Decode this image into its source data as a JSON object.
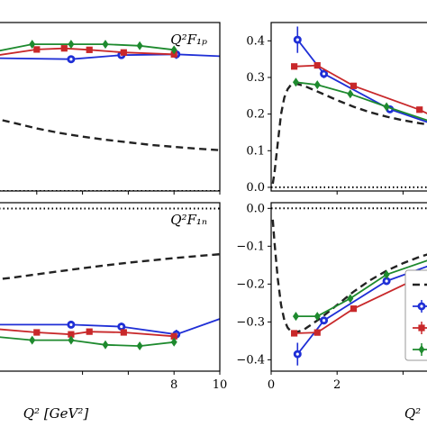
{
  "chart_data": {
    "type": "line",
    "colors": {
      "blue": "#1f2fd6",
      "red": "#c8282a",
      "green": "#1e8a2e",
      "theory": "#222222",
      "zero": "#000000"
    },
    "panels": [
      {
        "id": "tl",
        "label": "Q²F₁ₚ",
        "xlim": [
          0,
          10
        ],
        "ylim": [
          0.0,
          0.45
        ],
        "xticks": [],
        "yticks": [],
        "xticks_marks": [
          2,
          4,
          6,
          8,
          10
        ],
        "theory_curve": {
          "x": [
            0,
            0.5,
            1,
            2,
            3,
            4,
            5,
            6,
            7,
            8,
            9,
            10
          ],
          "y": [
            0.195,
            0.189,
            0.182,
            0.167,
            0.155,
            0.145,
            0.137,
            0.13,
            0.123,
            0.118,
            0.113,
            0.109
          ]
        },
        "zero_line": 0.0,
        "series": [
          {
            "color": "blue",
            "marker": "circle",
            "x": [
              0,
              3.5,
              5.7,
              8.1,
              10
            ],
            "y": [
              0.355,
              0.352,
              0.363,
              0.365,
              0.36
            ],
            "yerr": [
              0,
              0.006,
              0.008,
              0.012,
              0
            ]
          },
          {
            "color": "red",
            "marker": "square",
            "x": [
              0,
              2.0,
              3.2,
              4.3,
              5.8,
              8.0
            ],
            "y": [
              0.36,
              0.378,
              0.381,
              0.377,
              0.37,
              0.365
            ],
            "yerr": [
              0,
              0.004,
              0.004,
              0.005,
              0.005,
              0.006
            ]
          },
          {
            "color": "green",
            "marker": "diamond",
            "x": [
              0,
              1.8,
              3.5,
              5.0,
              6.5,
              8.0
            ],
            "y": [
              0.37,
              0.392,
              0.392,
              0.392,
              0.388,
              0.377
            ],
            "yerr": [
              0,
              0.004,
              0.005,
              0.005,
              0.006,
              0.006
            ]
          }
        ]
      },
      {
        "id": "tr",
        "label": "",
        "xlim": [
          0,
          5
        ],
        "ylim": [
          -0.01,
          0.45
        ],
        "xticks": [],
        "yticks": [
          "0.0",
          "0.1",
          "0.2",
          "0.3",
          "0.4"
        ],
        "yticks_values": [
          0.0,
          0.1,
          0.2,
          0.3,
          0.4
        ],
        "xticks_marks": [
          2,
          4
        ],
        "theory_curve": {
          "x": [
            0.05,
            0.1,
            0.2,
            0.3,
            0.4,
            0.5,
            0.6,
            0.75,
            1.0,
            1.5,
            2.0,
            2.5,
            3.0,
            3.5,
            4.0,
            4.5,
            5.0
          ],
          "y": [
            0.01,
            0.04,
            0.12,
            0.2,
            0.245,
            0.268,
            0.28,
            0.283,
            0.277,
            0.258,
            0.238,
            0.22,
            0.205,
            0.193,
            0.183,
            0.175,
            0.168
          ]
        },
        "zero_line": 0.0,
        "series": [
          {
            "color": "blue",
            "marker": "circle",
            "x": [
              0.8,
              1.6,
              3.6,
              5.0
            ],
            "y": [
              0.403,
              0.31,
              0.213,
              0.17
            ],
            "yerr": [
              0.036,
              0.012,
              0.008,
              0
            ]
          },
          {
            "color": "red",
            "marker": "square",
            "x": [
              0.7,
              1.4,
              2.5,
              4.5,
              5.0
            ],
            "y": [
              0.33,
              0.333,
              0.277,
              0.212,
              0.19
            ],
            "yerr": [
              0.008,
              0.006,
              0.006,
              0.005,
              0
            ]
          },
          {
            "color": "green",
            "marker": "diamond",
            "x": [
              0.75,
              1.4,
              2.4,
              3.5,
              5.0
            ],
            "y": [
              0.287,
              0.28,
              0.255,
              0.22,
              0.175
            ],
            "yerr": [
              0.01,
              0.008,
              0.007,
              0.007,
              0
            ]
          }
        ]
      },
      {
        "id": "bl",
        "label": "Q²F₁ₙ",
        "xlim": [
          0,
          10
        ],
        "ylim": [
          -0.42,
          0.015
        ],
        "xticks": [
          "8",
          "10"
        ],
        "xticks_values": [
          8,
          10
        ],
        "xticks_marks": [
          4,
          6,
          8,
          10
        ],
        "yticks": [],
        "xlabel": "Q² [GeV²]",
        "theory_curve": {
          "x": [
            0,
            1,
            2,
            3,
            4,
            5,
            6,
            7,
            8,
            9,
            10
          ],
          "y": [
            -0.185,
            -0.178,
            -0.17,
            -0.162,
            -0.154,
            -0.147,
            -0.14,
            -0.134,
            -0.128,
            -0.123,
            -0.118
          ]
        },
        "zero_line": 0.0,
        "series": [
          {
            "color": "blue",
            "marker": "circle",
            "x": [
              0,
              3.5,
              5.7,
              8.1,
              10
            ],
            "y": [
              -0.3,
              -0.3,
              -0.305,
              -0.325,
              -0.285
            ],
            "yerr": [
              0,
              0.006,
              0.01,
              0.012,
              0
            ]
          },
          {
            "color": "red",
            "marker": "square",
            "x": [
              0,
              2.0,
              3.5,
              4.3,
              5.8,
              8.0
            ],
            "y": [
              -0.31,
              -0.32,
              -0.325,
              -0.318,
              -0.32,
              -0.33
            ],
            "yerr": [
              0,
              0.004,
              0.004,
              0.005,
              0.005,
              0.006
            ]
          },
          {
            "color": "green",
            "marker": "diamond",
            "x": [
              0,
              1.8,
              3.5,
              5.0,
              6.5,
              8.0
            ],
            "y": [
              -0.33,
              -0.34,
              -0.34,
              -0.352,
              -0.355,
              -0.345
            ],
            "yerr": [
              0,
              0.005,
              0.005,
              0.006,
              0.007,
              0.008
            ]
          }
        ]
      },
      {
        "id": "br",
        "label": "",
        "xlim": [
          0,
          5
        ],
        "ylim": [
          -0.43,
          0.015
        ],
        "xticks": [
          "0",
          "2"
        ],
        "xticks_values": [
          0,
          2
        ],
        "xticks_marks": [
          0,
          2,
          4
        ],
        "yticks": [
          "0.0",
          "−0.1",
          "−0.2",
          "−0.3",
          "−0.4"
        ],
        "yticks_values": [
          0.0,
          -0.1,
          -0.2,
          -0.3,
          -0.4
        ],
        "xlabel": "Q²",
        "theory_curve": {
          "x": [
            0.05,
            0.1,
            0.2,
            0.3,
            0.4,
            0.5,
            0.6,
            0.75,
            1.0,
            1.5,
            2.0,
            2.5,
            3.0,
            3.5,
            4.0,
            4.5,
            5.0
          ],
          "y": [
            -0.03,
            -0.09,
            -0.185,
            -0.255,
            -0.295,
            -0.315,
            -0.325,
            -0.328,
            -0.32,
            -0.29,
            -0.255,
            -0.22,
            -0.19,
            -0.165,
            -0.145,
            -0.128,
            -0.115
          ]
        },
        "zero_line": 0.0,
        "series": [
          {
            "color": "blue",
            "marker": "circle",
            "x": [
              0.8,
              1.6,
              3.5,
              5.0
            ],
            "y": [
              -0.385,
              -0.296,
              -0.192,
              -0.145
            ],
            "yerr": [
              0.03,
              0.01,
              0.008,
              0
            ]
          },
          {
            "color": "red",
            "marker": "square",
            "x": [
              0.7,
              1.4,
              2.5,
              4.5,
              5.0
            ],
            "y": [
              -0.33,
              -0.328,
              -0.265,
              -0.182,
              -0.16
            ],
            "yerr": [
              0.008,
              0.006,
              0.006,
              0.006,
              0
            ]
          },
          {
            "color": "green",
            "marker": "diamond",
            "x": [
              0.75,
              1.4,
              2.4,
              3.5,
              5.0
            ],
            "y": [
              -0.285,
              -0.285,
              -0.238,
              -0.175,
              -0.13
            ],
            "yerr": [
              0.01,
              0.008,
              0.008,
              0.007,
              0
            ]
          }
        ]
      }
    ]
  }
}
